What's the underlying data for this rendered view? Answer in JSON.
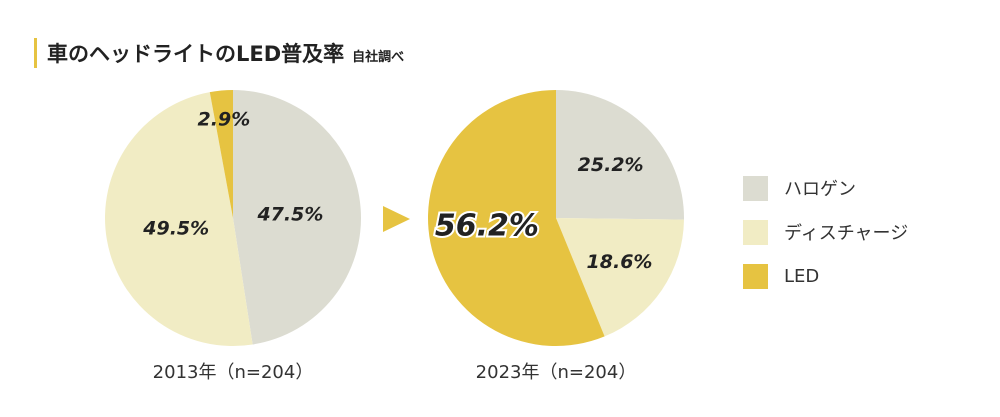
{
  "title": {
    "main": "車のヘッドライトのLED普及率",
    "sub": "自社調べ"
  },
  "colors": {
    "halogen": "#dcdcd1",
    "discharge": "#f1ecc4",
    "led": "#e6c341",
    "arrow": "#e6c341"
  },
  "legend": [
    {
      "label": "ハロゲン",
      "key": "halogen"
    },
    {
      "label": "ディスチャージ",
      "key": "discharge"
    },
    {
      "label": "LED",
      "key": "led"
    }
  ],
  "chart_data": [
    {
      "type": "pie",
      "caption": "2013年（n=204）",
      "categories": [
        "ハロゲン",
        "ディスチャージ",
        "LED"
      ],
      "values": [
        47.5,
        49.5,
        2.9
      ],
      "labels": [
        "47.5%",
        "49.5%",
        "2.9%"
      ]
    },
    {
      "type": "pie",
      "caption": "2023年（n=204）",
      "categories": [
        "ハロゲン",
        "ディスチャージ",
        "LED"
      ],
      "values": [
        25.2,
        18.6,
        56.2
      ],
      "labels": [
        "25.2%",
        "18.6%",
        "56.2%"
      ],
      "highlight": "LED"
    }
  ]
}
